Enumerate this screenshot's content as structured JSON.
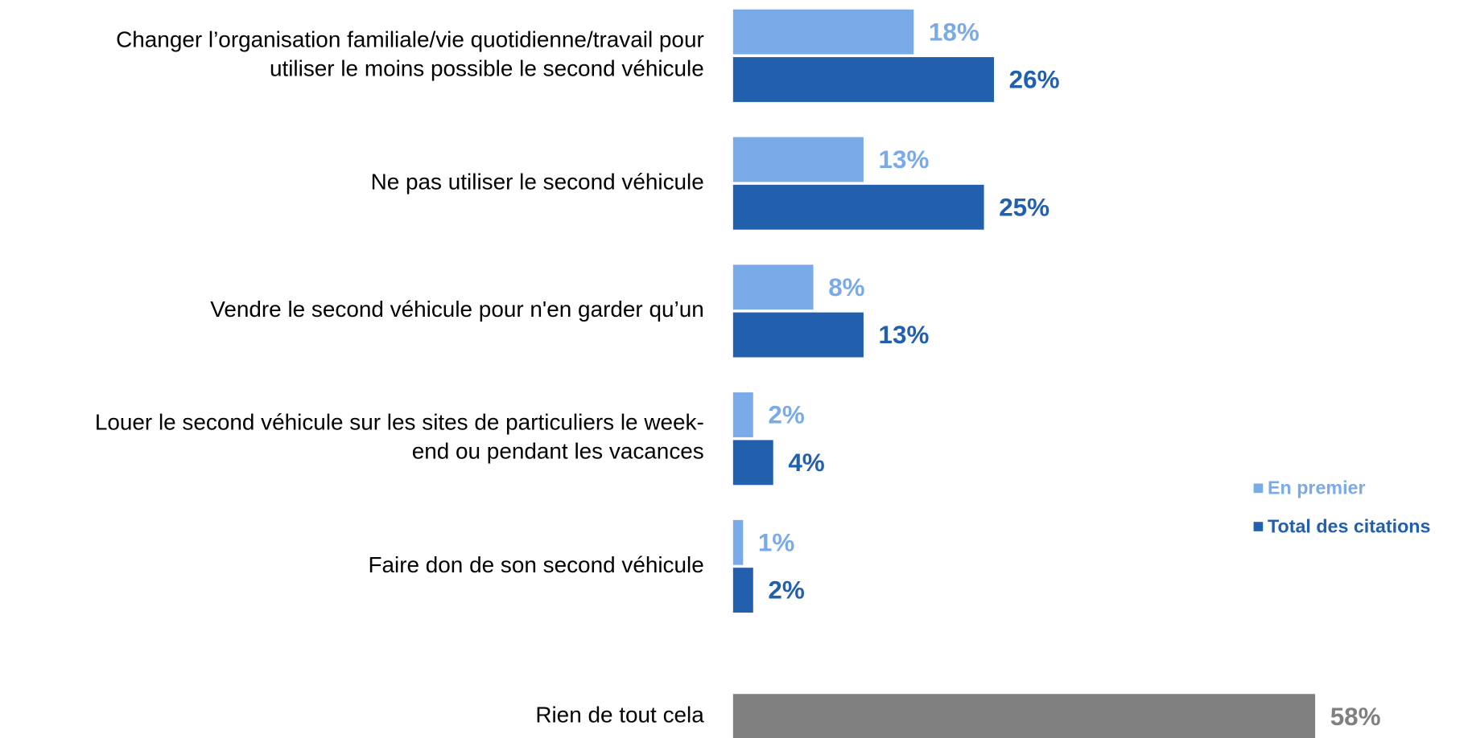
{
  "chart_data": {
    "type": "bar",
    "orientation": "horizontal",
    "categories": [
      "Changer l’organisation familiale/vie quotidienne/travail pour\nutiliser le moins possible le second véhicule",
      "Ne pas utiliser le second véhicule",
      "Vendre le second véhicule pour n'en garder qu’un",
      "Louer le second véhicule sur les sites de particuliers le week-\nend ou pendant les vacances",
      "Faire don de son second véhicule"
    ],
    "series": [
      {
        "name": "En premier",
        "color": "#7aaae8",
        "values": [
          18,
          13,
          8,
          2,
          1
        ],
        "value_labels": [
          "18%",
          "13%",
          "8%",
          "2%",
          "1%"
        ]
      },
      {
        "name": "Total des citations",
        "color": "#2260ad",
        "values": [
          26,
          25,
          13,
          4,
          2
        ],
        "value_labels": [
          "26%",
          "25%",
          "13%",
          "4%",
          "2%"
        ]
      }
    ],
    "other": {
      "category": "Rien de tout cela",
      "value": 58,
      "value_label": "58%",
      "color": "#808080"
    },
    "legend": "right"
  }
}
